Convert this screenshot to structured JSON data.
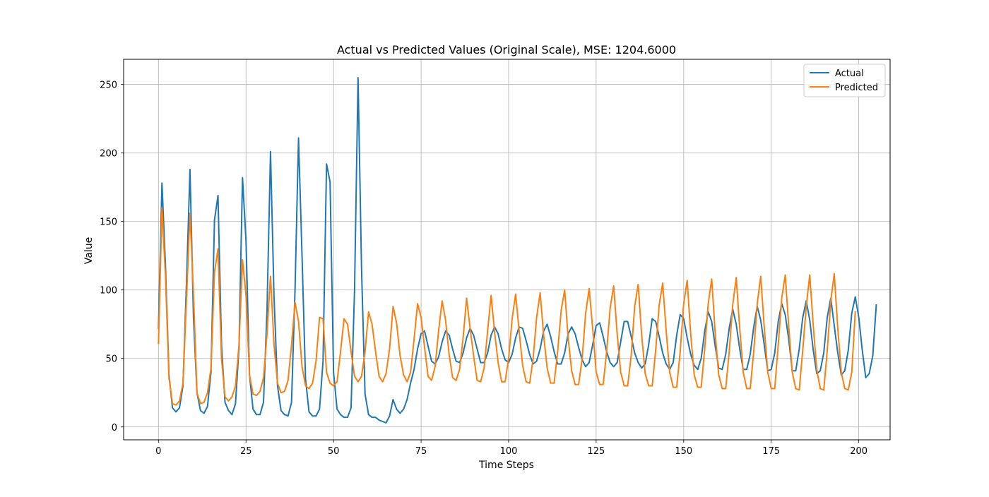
{
  "chart_data": {
    "type": "line",
    "title": "Actual vs Predicted Values (Original Scale), MSE: 1204.6000",
    "xlabel": "Time Steps",
    "ylabel": "Value",
    "xlim": [
      -9.95,
      208.95
    ],
    "ylim": [
      -9.4,
      268.4
    ],
    "x_ticks": [
      0,
      25,
      50,
      75,
      100,
      125,
      150,
      175,
      200
    ],
    "y_ticks": [
      0,
      50,
      100,
      150,
      200,
      250
    ],
    "grid": true,
    "legend_position": "top-right",
    "series": [
      {
        "name": "Actual",
        "color": "#1f77b4",
        "values": [
          72,
          178,
          118,
          38,
          14,
          11,
          14,
          30,
          105,
          188,
          80,
          25,
          12,
          10,
          15,
          40,
          151,
          169,
          60,
          18,
          12,
          9,
          17,
          58,
          182,
          136,
          38,
          13,
          9,
          9,
          18,
          85,
          201,
          95,
          30,
          12,
          9,
          8,
          18,
          100,
          211,
          125,
          35,
          11,
          8,
          8,
          13,
          48,
          192,
          179,
          40,
          13,
          9,
          7,
          7,
          14,
          100,
          255,
          115,
          24,
          9,
          7,
          7,
          5,
          4,
          3,
          8,
          20,
          13,
          10,
          13,
          20,
          32,
          42,
          57,
          68,
          70,
          59,
          48,
          46,
          51,
          62,
          70,
          67,
          57,
          48,
          47,
          54,
          65,
          72,
          67,
          57,
          47,
          47,
          54,
          67,
          73,
          68,
          57,
          49,
          47,
          53,
          65,
          73,
          72,
          63,
          53,
          46,
          48,
          57,
          70,
          75,
          66,
          55,
          46,
          46,
          54,
          68,
          73,
          68,
          58,
          49,
          44,
          47,
          60,
          74,
          76,
          66,
          55,
          47,
          44,
          47,
          62,
          77,
          77,
          66,
          54,
          47,
          43,
          46,
          60,
          79,
          77,
          66,
          54,
          46,
          42,
          47,
          67,
          82,
          79,
          65,
          53,
          45,
          42,
          50,
          70,
          84,
          77,
          59,
          43,
          42,
          53,
          72,
          86,
          75,
          57,
          42,
          42,
          53,
          73,
          88,
          78,
          60,
          41,
          42,
          54,
          77,
          90,
          82,
          64,
          41,
          41,
          57,
          80,
          92,
          78,
          56,
          39,
          41,
          54,
          80,
          94,
          74,
          54,
          38,
          41,
          56,
          83,
          95,
          80,
          56,
          36,
          39,
          52,
          89
        ]
      },
      {
        "name": "Predicted",
        "color": "#ff7f0e",
        "values": [
          61,
          160,
          110,
          36,
          17,
          16,
          19,
          32,
          93,
          156,
          97,
          25,
          17,
          18,
          25,
          43,
          113,
          130,
          50,
          22,
          19,
          22,
          30,
          60,
          122,
          96,
          38,
          24,
          23,
          26,
          36,
          68,
          110,
          60,
          32,
          25,
          26,
          34,
          60,
          91,
          77,
          44,
          30,
          28,
          32,
          48,
          80,
          79,
          40,
          32,
          30,
          33,
          55,
          79,
          75,
          55,
          37,
          33,
          37,
          55,
          84,
          75,
          55,
          37,
          33,
          39,
          57,
          88,
          76,
          52,
          38,
          33,
          40,
          64,
          90,
          80,
          58,
          37,
          34,
          44,
          70,
          92,
          78,
          53,
          36,
          34,
          42,
          65,
          94,
          72,
          52,
          34,
          33,
          43,
          70,
          96,
          69,
          47,
          33,
          33,
          50,
          79,
          97,
          70,
          45,
          33,
          32,
          50,
          80,
          98,
          67,
          43,
          32,
          32,
          55,
          85,
          100,
          65,
          41,
          31,
          31,
          50,
          83,
          101,
          72,
          40,
          31,
          31,
          55,
          87,
          103,
          68,
          40,
          30,
          30,
          52,
          88,
          104,
          67,
          39,
          30,
          30,
          56,
          89,
          105,
          70,
          40,
          29,
          29,
          55,
          90,
          107,
          68,
          38,
          29,
          29,
          57,
          90,
          108,
          68,
          38,
          28,
          28,
          55,
          89,
          109,
          72,
          40,
          28,
          28,
          55,
          90,
          110,
          73,
          40,
          28,
          28,
          60,
          94,
          111,
          73,
          40,
          28,
          27,
          56,
          88,
          111,
          74,
          42,
          28,
          27,
          56,
          92,
          112,
          72,
          40,
          28,
          27,
          40,
          84
        ]
      }
    ]
  }
}
